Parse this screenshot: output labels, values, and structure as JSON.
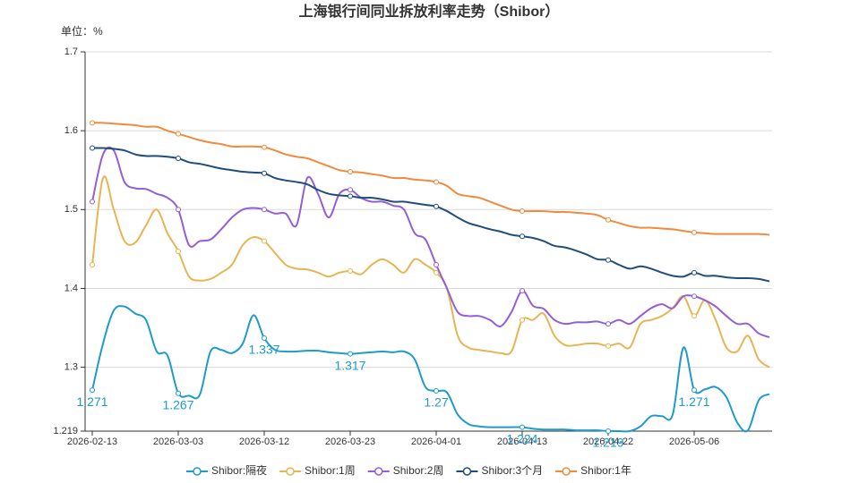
{
  "chart_data": {
    "type": "line",
    "title": "上海银行间同业拆放利率走势（Shibor）",
    "y_axis_label": "单位：%",
    "categories": [
      "2026-02-13",
      null,
      null,
      null,
      null,
      null,
      null,
      null,
      "2026-03-03",
      null,
      null,
      null,
      null,
      null,
      null,
      null,
      "2026-03-12",
      null,
      null,
      null,
      null,
      null,
      null,
      null,
      "2026-03-23",
      null,
      null,
      null,
      null,
      null,
      null,
      null,
      "2026-04-01",
      null,
      null,
      null,
      null,
      null,
      null,
      null,
      "2026-04-13",
      null,
      null,
      null,
      null,
      null,
      null,
      null,
      "2026-04-22",
      null,
      null,
      null,
      null,
      null,
      null,
      null,
      "2026-05-06",
      null,
      null,
      null,
      null,
      null,
      null,
      null
    ],
    "ylim": [
      1.219,
      1.7
    ],
    "yticks": [
      1.219,
      1.3,
      1.4,
      1.5,
      1.6,
      1.7
    ],
    "grid": true,
    "legend": "bottom",
    "smooth": true,
    "series": [
      {
        "name": "Shibor:隔夜",
        "color": "#1e9bcc",
        "show_labels": true,
        "values": [
          1.271,
          1.33,
          1.372,
          1.377,
          1.368,
          1.36,
          1.32,
          1.315,
          1.267,
          1.264,
          1.265,
          1.32,
          1.322,
          1.318,
          1.33,
          1.366,
          1.337,
          1.322,
          1.32,
          1.32,
          1.321,
          1.321,
          1.319,
          1.318,
          1.317,
          1.318,
          1.319,
          1.32,
          1.319,
          1.32,
          1.31,
          1.275,
          1.27,
          1.268,
          1.24,
          1.228,
          1.225,
          1.224,
          1.224,
          1.224,
          1.224,
          1.222,
          1.221,
          1.221,
          1.221,
          1.22,
          1.22,
          1.22,
          1.219,
          1.219,
          1.219,
          1.225,
          1.238,
          1.238,
          1.24,
          1.325,
          1.271,
          1.272,
          1.275,
          1.262,
          1.23,
          1.22,
          1.258,
          1.266
        ]
      },
      {
        "name": "Shibor:1周",
        "color": "#e6b554",
        "values": [
          1.43,
          1.54,
          1.5,
          1.46,
          1.458,
          1.48,
          1.5,
          1.47,
          1.447,
          1.415,
          1.41,
          1.412,
          1.42,
          1.43,
          1.455,
          1.465,
          1.46,
          1.445,
          1.43,
          1.425,
          1.424,
          1.42,
          1.415,
          1.42,
          1.422,
          1.418,
          1.43,
          1.437,
          1.43,
          1.42,
          1.437,
          1.43,
          1.42,
          1.4,
          1.34,
          1.325,
          1.322,
          1.32,
          1.318,
          1.32,
          1.36,
          1.36,
          1.368,
          1.34,
          1.328,
          1.328,
          1.33,
          1.33,
          1.327,
          1.33,
          1.325,
          1.355,
          1.36,
          1.365,
          1.375,
          1.39,
          1.365,
          1.385,
          1.36,
          1.325,
          1.32,
          1.34,
          1.31,
          1.3
        ]
      },
      {
        "name": "Shibor:2周",
        "color": "#925fd8",
        "values": [
          1.51,
          1.57,
          1.575,
          1.535,
          1.527,
          1.526,
          1.52,
          1.515,
          1.5,
          1.455,
          1.46,
          1.462,
          1.475,
          1.49,
          1.5,
          1.502,
          1.5,
          1.495,
          1.495,
          1.48,
          1.54,
          1.52,
          1.49,
          1.52,
          1.525,
          1.515,
          1.51,
          1.51,
          1.505,
          1.5,
          1.47,
          1.462,
          1.43,
          1.4,
          1.37,
          1.365,
          1.365,
          1.36,
          1.352,
          1.37,
          1.397,
          1.378,
          1.374,
          1.36,
          1.355,
          1.357,
          1.357,
          1.358,
          1.355,
          1.36,
          1.355,
          1.365,
          1.375,
          1.38,
          1.375,
          1.39,
          1.39,
          1.385,
          1.377,
          1.365,
          1.355,
          1.355,
          1.343,
          1.338
        ]
      },
      {
        "name": "Shibor:3个月",
        "color": "#1f4e7a",
        "values": [
          1.578,
          1.578,
          1.577,
          1.575,
          1.57,
          1.568,
          1.568,
          1.567,
          1.565,
          1.56,
          1.558,
          1.555,
          1.552,
          1.55,
          1.548,
          1.547,
          1.546,
          1.54,
          1.537,
          1.535,
          1.532,
          1.525,
          1.52,
          1.518,
          1.517,
          1.515,
          1.515,
          1.513,
          1.51,
          1.51,
          1.508,
          1.506,
          1.504,
          1.498,
          1.49,
          1.483,
          1.479,
          1.475,
          1.472,
          1.468,
          1.466,
          1.464,
          1.46,
          1.454,
          1.452,
          1.448,
          1.443,
          1.437,
          1.436,
          1.43,
          1.425,
          1.428,
          1.425,
          1.42,
          1.416,
          1.415,
          1.42,
          1.416,
          1.416,
          1.414,
          1.413,
          1.413,
          1.412,
          1.409
        ]
      },
      {
        "name": "Shibor:1年",
        "color": "#f08a3c",
        "values": [
          1.61,
          1.61,
          1.609,
          1.608,
          1.607,
          1.605,
          1.605,
          1.6,
          1.596,
          1.592,
          1.588,
          1.585,
          1.583,
          1.58,
          1.58,
          1.58,
          1.579,
          1.575,
          1.57,
          1.567,
          1.565,
          1.56,
          1.555,
          1.55,
          1.548,
          1.547,
          1.545,
          1.543,
          1.54,
          1.54,
          1.538,
          1.537,
          1.535,
          1.53,
          1.52,
          1.517,
          1.515,
          1.51,
          1.505,
          1.5,
          1.498,
          1.498,
          1.498,
          1.497,
          1.497,
          1.496,
          1.495,
          1.493,
          1.487,
          1.483,
          1.479,
          1.477,
          1.477,
          1.476,
          1.475,
          1.473,
          1.471,
          1.47,
          1.469,
          1.469,
          1.469,
          1.469,
          1.469,
          1.468
        ]
      }
    ]
  }
}
